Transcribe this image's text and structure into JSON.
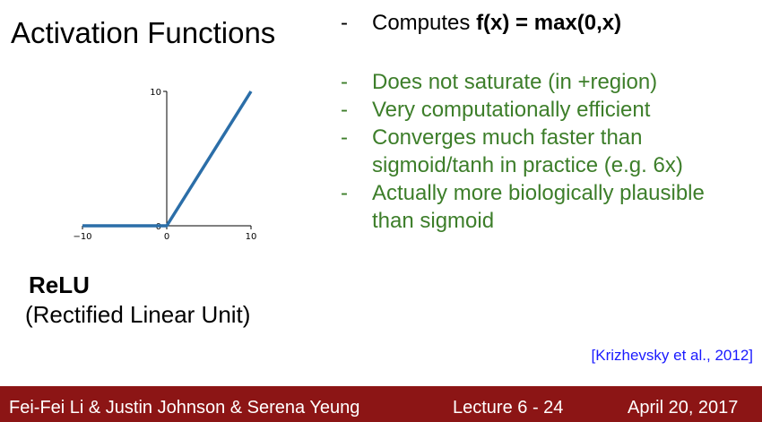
{
  "slide": {
    "title": "Activation Functions",
    "caption_title": "ReLU",
    "caption_subtitle": "(Rectified Linear Unit)",
    "citation": "[Krizhevsky et al., 2012]"
  },
  "bullets": {
    "main": {
      "dash": "-",
      "prefix": "Computes ",
      "formula": "f(x) = max(0,x)"
    },
    "items": [
      {
        "dash": "-",
        "lines": [
          "Does not saturate (in +region)"
        ]
      },
      {
        "dash": "-",
        "lines": [
          "Very computationally efficient"
        ]
      },
      {
        "dash": "-",
        "lines": [
          "Converges much faster than",
          "sigmoid/tanh in practice (e.g. 6x)"
        ]
      },
      {
        "dash": "-",
        "lines": [
          "Actually more biologically plausible",
          "than sigmoid"
        ]
      }
    ]
  },
  "footer": {
    "authors": "Fei-Fei Li & Justin Johnson & Serena Yeung",
    "lecture": "Lecture 6 - 24",
    "date": "April 20, 2017"
  },
  "colors": {
    "title_text": "#000000",
    "bullet_green": "#3d7e2a",
    "citation_blue": "#1a1aff",
    "footer_bg": "#8c1515",
    "footer_text": "#ffffff",
    "line_color": "#2b6ea8"
  },
  "chart_data": {
    "type": "line",
    "title": "",
    "xlabel": "",
    "ylabel": "",
    "xlim": [
      -10,
      10
    ],
    "ylim": [
      0,
      10
    ],
    "x_ticks": [
      "−10",
      "0",
      "10"
    ],
    "y_ticks": [
      "0",
      "10"
    ],
    "series": [
      {
        "x": [
          -10,
          0,
          10
        ],
        "y": [
          0,
          0,
          10
        ]
      }
    ]
  }
}
